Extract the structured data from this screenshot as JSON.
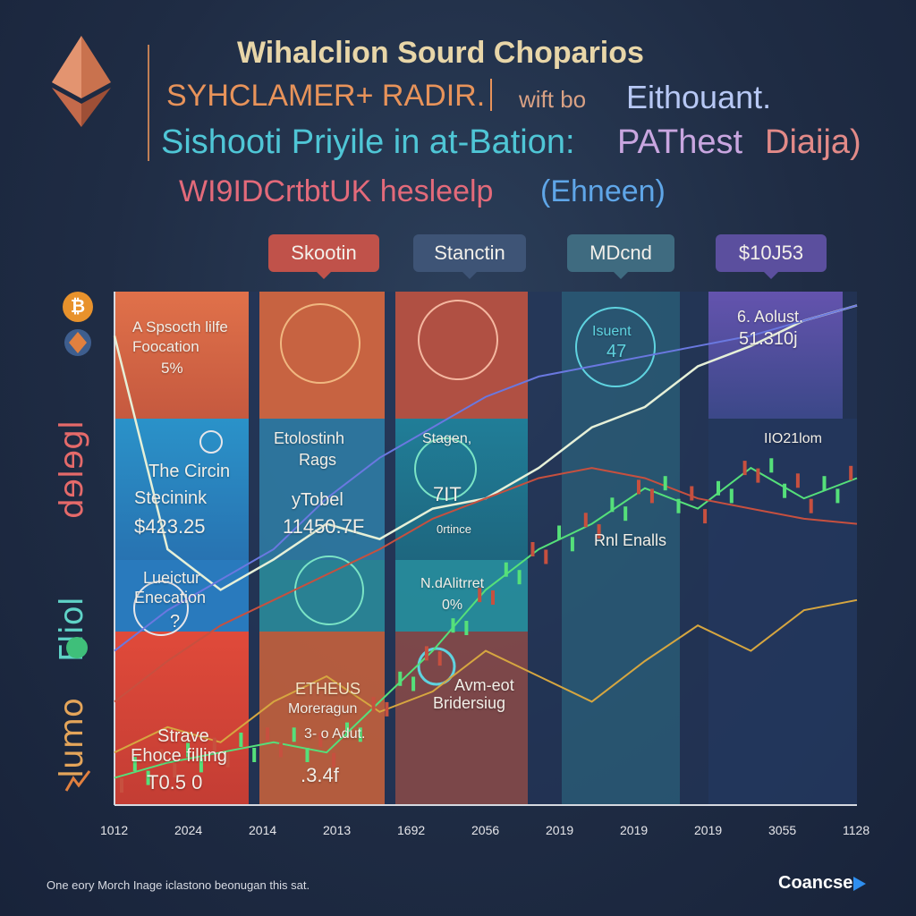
{
  "header": {
    "title": "Wihalclion Sourd Choparios",
    "subtitle_1a": "SYHCLAMER+ RADIR.",
    "subtitle_1b": "wift bo",
    "subtitle_1c": "Eithouant.",
    "subtitle_2a": "Sishooti Priyile in at-Bation:",
    "subtitle_2b": "PAThest",
    "subtitle_2c": "Diaija)",
    "subtitle_3a": "WI9IDCrtbtUK hesleelp",
    "subtitle_3b": "(Ehneen)"
  },
  "tags": [
    {
      "label": "Skootin",
      "color": "#c0524a"
    },
    {
      "label": "Stanctin",
      "color": "#3e5476"
    },
    {
      "label": "MDcnd",
      "color": "#3f6b80"
    },
    {
      "label": "$10J53",
      "color": "#5b4f9e"
    }
  ],
  "side": {
    "label_colored": "dɘlɘgl",
    "label_white": "Fliol",
    "label_bottom": "lumo"
  },
  "cells": {
    "r1c1_line1": "A Spsocth lilfe",
    "r1c1_line2": "Foocation",
    "r1c1_value": "5%",
    "r1c5_label": "Isuent",
    "r1c5_value": "47",
    "r1c6_label": "6. Aolust.",
    "r1c6_value": "51.310j",
    "r2c1_line1": "The Circin",
    "r2c1_line2": "Stecinink",
    "r2c1_value": "$423.25",
    "r2c2_line1": "Etolostinh",
    "r2c2_line2": "Rags",
    "r2c2_line3": "yTobel",
    "r2c2_value": "11450.7F",
    "r2c3_line1": "Stagen,",
    "r2c3_value": "7IT",
    "r2c3_line2": "0rtince",
    "r2c6_label": "IIO21lom",
    "r2c5_label": "Rnl Enalls",
    "r3c1_line1": "Lueictur",
    "r3c1_line2": "Enecation",
    "r3c1_value": "?",
    "r3c3_line1": "N.dAlitrret",
    "r3c3_value": "0%",
    "r4c2_line1": "ETHEUS",
    "r4c2_line2": "Moreragun",
    "r4c2_line3": "3- o Adut.",
    "r4c2_value": ".3.4f",
    "r4c3_line1": "Avm-eot",
    "r4c3_line2": "Bridersiug",
    "r4c1_line1": "Strave",
    "r4c1_line2": "Ehoce filling",
    "r4c1_value": "T0.5 0"
  },
  "chart_data": {
    "type": "line",
    "title": "Wihalclion Sourd Choparios",
    "x_ticks": [
      "1012",
      "2024",
      "2014",
      "2013",
      "1692",
      "2056",
      "2019",
      "2019",
      "2019",
      "3055",
      "1128"
    ],
    "series": [
      {
        "color": "#e6f0d8",
        "values": [
          0.92,
          0.5,
          0.42,
          0.48,
          0.55,
          0.52,
          0.58,
          0.6,
          0.66,
          0.74,
          0.78,
          0.86,
          0.9,
          0.95,
          0.98
        ]
      },
      {
        "color": "#55e07a",
        "values": [
          0.05,
          0.08,
          0.1,
          0.12,
          0.1,
          0.2,
          0.3,
          0.42,
          0.5,
          0.55,
          0.62,
          0.58,
          0.66,
          0.6,
          0.64
        ]
      },
      {
        "color": "#c7503f",
        "values": [
          0.2,
          0.28,
          0.35,
          0.4,
          0.45,
          0.5,
          0.56,
          0.6,
          0.64,
          0.66,
          0.64,
          0.6,
          0.58,
          0.56,
          0.55
        ]
      },
      {
        "color": "#d6a640",
        "values": [
          0.1,
          0.15,
          0.12,
          0.2,
          0.25,
          0.18,
          0.22,
          0.3,
          0.25,
          0.2,
          0.28,
          0.35,
          0.3,
          0.38,
          0.4
        ]
      },
      {
        "color": "#6a78e0",
        "values": [
          0.3,
          0.38,
          0.44,
          0.5,
          0.6,
          0.68,
          0.74,
          0.8,
          0.84,
          0.86,
          0.88,
          0.9,
          0.92,
          0.95,
          0.98
        ]
      }
    ],
    "ylim": [
      0,
      1
    ],
    "grid": false,
    "legend": "none"
  },
  "footer": {
    "note": "One eory Morch Inage iclastono beonugan this sat.",
    "brand": "Coancse"
  },
  "colors": {
    "bg": "#1f2c44",
    "accent_orange": "#e8935a",
    "accent_teal": "#4fc6d6",
    "candle_green": "#55e07a",
    "candle_red": "#c7503f"
  }
}
